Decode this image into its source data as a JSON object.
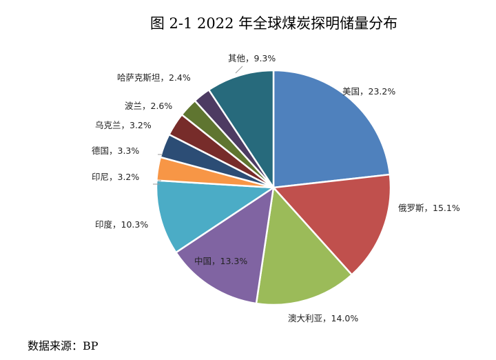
{
  "chart_data": {
    "type": "pie",
    "title": "图 2-1 2022 年全球煤炭探明储量分布",
    "source": "数据来源：BP",
    "start_angle": "top, clockwise",
    "slices": [
      {
        "name": "美国",
        "value": 23.2,
        "label": "美国，23.2%",
        "color": "#4F81BD"
      },
      {
        "name": "俄罗斯",
        "value": 15.1,
        "label": "俄罗斯，15.1%",
        "color": "#C0504D"
      },
      {
        "name": "澳大利亚",
        "value": 14.0,
        "label": "澳大利亚，14.0%",
        "color": "#9BBB59"
      },
      {
        "name": "中国",
        "value": 13.3,
        "label": "中国，13.3%",
        "color": "#8064A2"
      },
      {
        "name": "印度",
        "value": 10.3,
        "label": "印度，10.3%",
        "color": "#4BACC6"
      },
      {
        "name": "印尼",
        "value": 3.2,
        "label": "印尼，3.2%",
        "color": "#F79646"
      },
      {
        "name": "德国",
        "value": 3.3,
        "label": "德国，3.3%",
        "color": "#2C4D75"
      },
      {
        "name": "乌克兰",
        "value": 3.2,
        "label": "乌克兰，3.2%",
        "color": "#772C2A"
      },
      {
        "name": "波兰",
        "value": 2.6,
        "label": "波兰，2.6%",
        "color": "#5F7530"
      },
      {
        "name": "哈萨克斯坦",
        "value": 2.4,
        "label": "哈萨克斯坦，2.4%",
        "color": "#4D3B62"
      },
      {
        "name": "其他",
        "value": 9.3,
        "label": "其他，9.3%",
        "color": "#276A7C"
      }
    ]
  }
}
